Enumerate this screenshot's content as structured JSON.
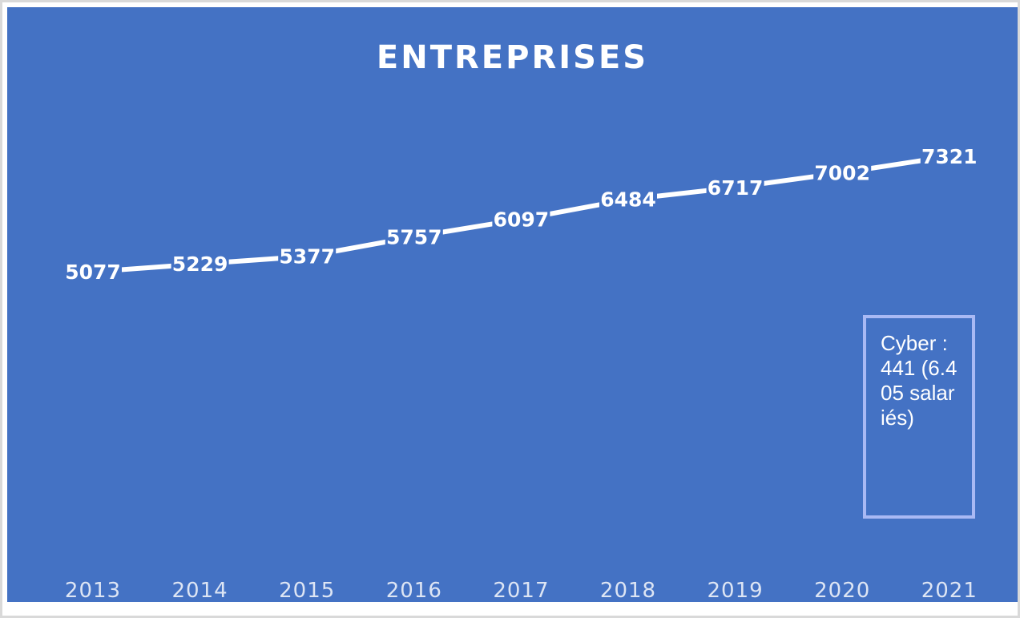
{
  "chart_data": {
    "type": "line",
    "title": "ENTREPRISES",
    "categories": [
      "2013",
      "2014",
      "2015",
      "2016",
      "2017",
      "2018",
      "2019",
      "2020",
      "2021"
    ],
    "values": [
      5077,
      5229,
      5377,
      5757,
      6097,
      6484,
      6717,
      7002,
      7321
    ],
    "xlabel": "",
    "ylabel": "",
    "ylim": [
      0,
      8000
    ],
    "grid": false,
    "drop_lines": true,
    "data_labels": true,
    "annotation": "Cyber : 441 (6.405 salariés)"
  },
  "colors": {
    "background": "#4472c4",
    "line": "#ffffff",
    "drop_line": "#d6def2",
    "annotation_border": "#a9b9f4",
    "text": "#ffffff",
    "axis_label": "#dde5f4"
  }
}
